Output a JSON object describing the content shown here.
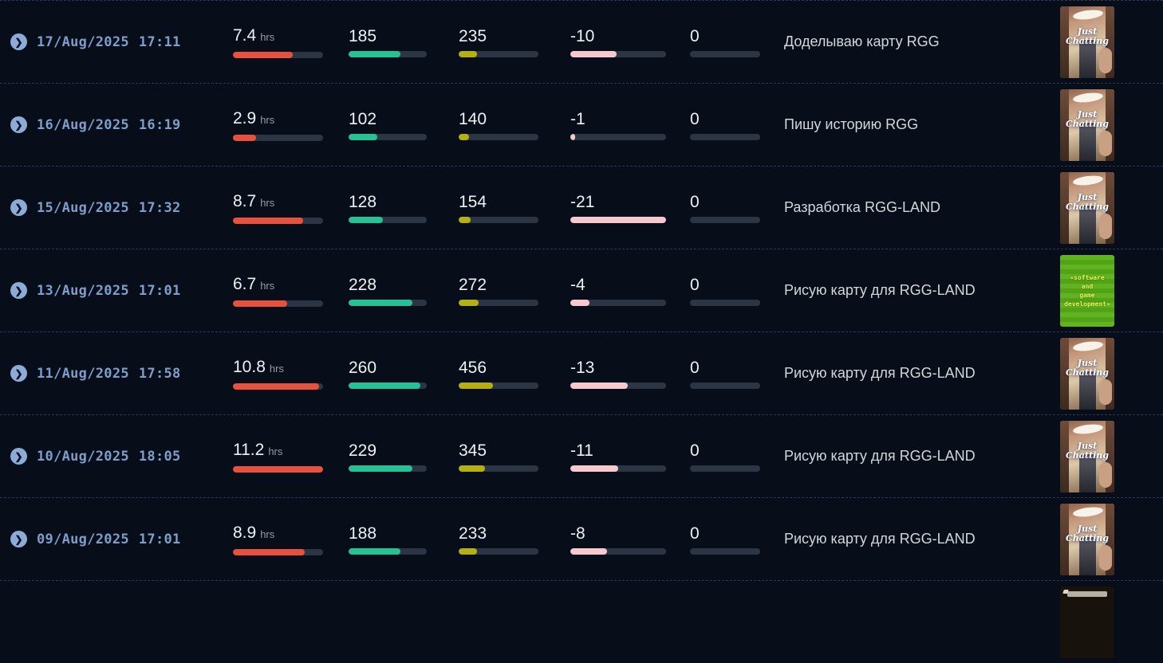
{
  "colors": {
    "background": "#070e19",
    "separator": "#2b3a52",
    "date_text": "#7e9dc9",
    "chevron_circle": "#8cabd6",
    "value_text": "#eef1f4",
    "unit_text": "#959ca6",
    "title_text": "#d3d6da",
    "bar_track": "#2c3543",
    "bar_red": "#e8513d",
    "bar_green": "#27c195",
    "bar_yellow": "#b5af15",
    "bar_pink": "#f8c8cf"
  },
  "icons": {
    "expand": "chevron-circle-right"
  },
  "thumbnails": {
    "just_chatting": {
      "lines": [
        "Just",
        "Chatting"
      ]
    },
    "software_dev": {
      "lines": [
        "«software",
        "and",
        "game",
        "development»"
      ]
    },
    "dark_game": {
      "lines": []
    }
  },
  "table": {
    "rows": [
      {
        "date": "17/Aug/2025",
        "time": "17:11",
        "stats": {
          "hours": {
            "value": "7.4",
            "unit": "hrs",
            "pct": 66
          },
          "green": {
            "value": "185",
            "pct": 66
          },
          "yellow": {
            "value": "235",
            "pct": 23
          },
          "pink": {
            "value": "-10",
            "pct": 48
          },
          "last": {
            "value": "0",
            "pct": 0
          }
        },
        "title": "Доделываю карту RGG",
        "thumbnail": "just_chatting"
      },
      {
        "date": "16/Aug/2025",
        "time": "16:19",
        "stats": {
          "hours": {
            "value": "2.9",
            "unit": "hrs",
            "pct": 26
          },
          "green": {
            "value": "102",
            "pct": 37
          },
          "yellow": {
            "value": "140",
            "pct": 13
          },
          "pink": {
            "value": "-1",
            "pct": 5
          },
          "last": {
            "value": "0",
            "pct": 0
          }
        },
        "title": "Пишу историю RGG",
        "thumbnail": "just_chatting"
      },
      {
        "date": "15/Aug/2025",
        "time": "17:32",
        "stats": {
          "hours": {
            "value": "8.7",
            "unit": "hrs",
            "pct": 78
          },
          "green": {
            "value": "128",
            "pct": 44
          },
          "yellow": {
            "value": "154",
            "pct": 15
          },
          "pink": {
            "value": "-21",
            "pct": 100
          },
          "last": {
            "value": "0",
            "pct": 0
          }
        },
        "title": "Разработка RGG-LAND",
        "thumbnail": "just_chatting"
      },
      {
        "date": "13/Aug/2025",
        "time": "17:01",
        "stats": {
          "hours": {
            "value": "6.7",
            "unit": "hrs",
            "pct": 60
          },
          "green": {
            "value": "228",
            "pct": 82
          },
          "yellow": {
            "value": "272",
            "pct": 25
          },
          "pink": {
            "value": "-4",
            "pct": 20
          },
          "last": {
            "value": "0",
            "pct": 0
          }
        },
        "title": "Рисую карту для RGG-LAND",
        "thumbnail": "software_dev"
      },
      {
        "date": "11/Aug/2025",
        "time": "17:58",
        "stats": {
          "hours": {
            "value": "10.8",
            "unit": "hrs",
            "pct": 96
          },
          "green": {
            "value": "260",
            "pct": 92
          },
          "yellow": {
            "value": "456",
            "pct": 43
          },
          "pink": {
            "value": "-13",
            "pct": 60
          },
          "last": {
            "value": "0",
            "pct": 0
          }
        },
        "title": "Рисую карту для RGG-LAND",
        "thumbnail": "just_chatting"
      },
      {
        "date": "10/Aug/2025",
        "time": "18:05",
        "stats": {
          "hours": {
            "value": "11.2",
            "unit": "hrs",
            "pct": 100
          },
          "green": {
            "value": "229",
            "pct": 82
          },
          "yellow": {
            "value": "345",
            "pct": 33
          },
          "pink": {
            "value": "-11",
            "pct": 50
          },
          "last": {
            "value": "0",
            "pct": 0
          }
        },
        "title": "Рисую карту для RGG-LAND",
        "thumbnail": "just_chatting"
      },
      {
        "date": "09/Aug/2025",
        "time": "17:01",
        "stats": {
          "hours": {
            "value": "8.9",
            "unit": "hrs",
            "pct": 80
          },
          "green": {
            "value": "188",
            "pct": 66
          },
          "yellow": {
            "value": "233",
            "pct": 23
          },
          "pink": {
            "value": "-8",
            "pct": 38
          },
          "last": {
            "value": "0",
            "pct": 0
          }
        },
        "title": "Рисую карту для RGG-LAND",
        "thumbnail": "just_chatting"
      },
      {
        "partial": true,
        "thumbnail": "dark_game"
      }
    ]
  }
}
